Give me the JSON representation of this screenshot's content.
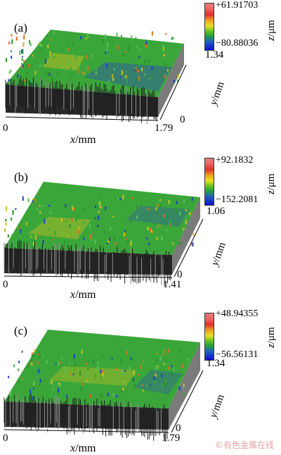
{
  "panels": [
    {
      "label": "(a)",
      "z_max": "+61.91703",
      "z_min": "−80.88036",
      "y_max": "1.34",
      "y_min": "0",
      "x_min": "0",
      "x_max": "1.79"
    },
    {
      "label": "(b)",
      "z_max": "+92.1832",
      "z_min": "−152.2081",
      "y_max": "1.06",
      "y_min": "0",
      "x_min": "0",
      "x_max": "1.41"
    },
    {
      "label": "(c)",
      "z_max": "+48.94355",
      "z_min": "−56.56131",
      "y_max": "1.34",
      "y_min": "0",
      "x_min": "0",
      "x_max": "1.79"
    }
  ],
  "axis_labels": {
    "x_var": "x",
    "x_unit": "/mm",
    "y_var": "y",
    "y_unit": "/mm",
    "z_var": "z",
    "z_unit": "/μm"
  },
  "watermark": "©有色金属在线",
  "colors": {
    "surface_green": "#3aa63a",
    "surface_yellow": "#d8c020",
    "surface_blue": "#2040c0",
    "base_gray": "#6a6a6a"
  }
}
